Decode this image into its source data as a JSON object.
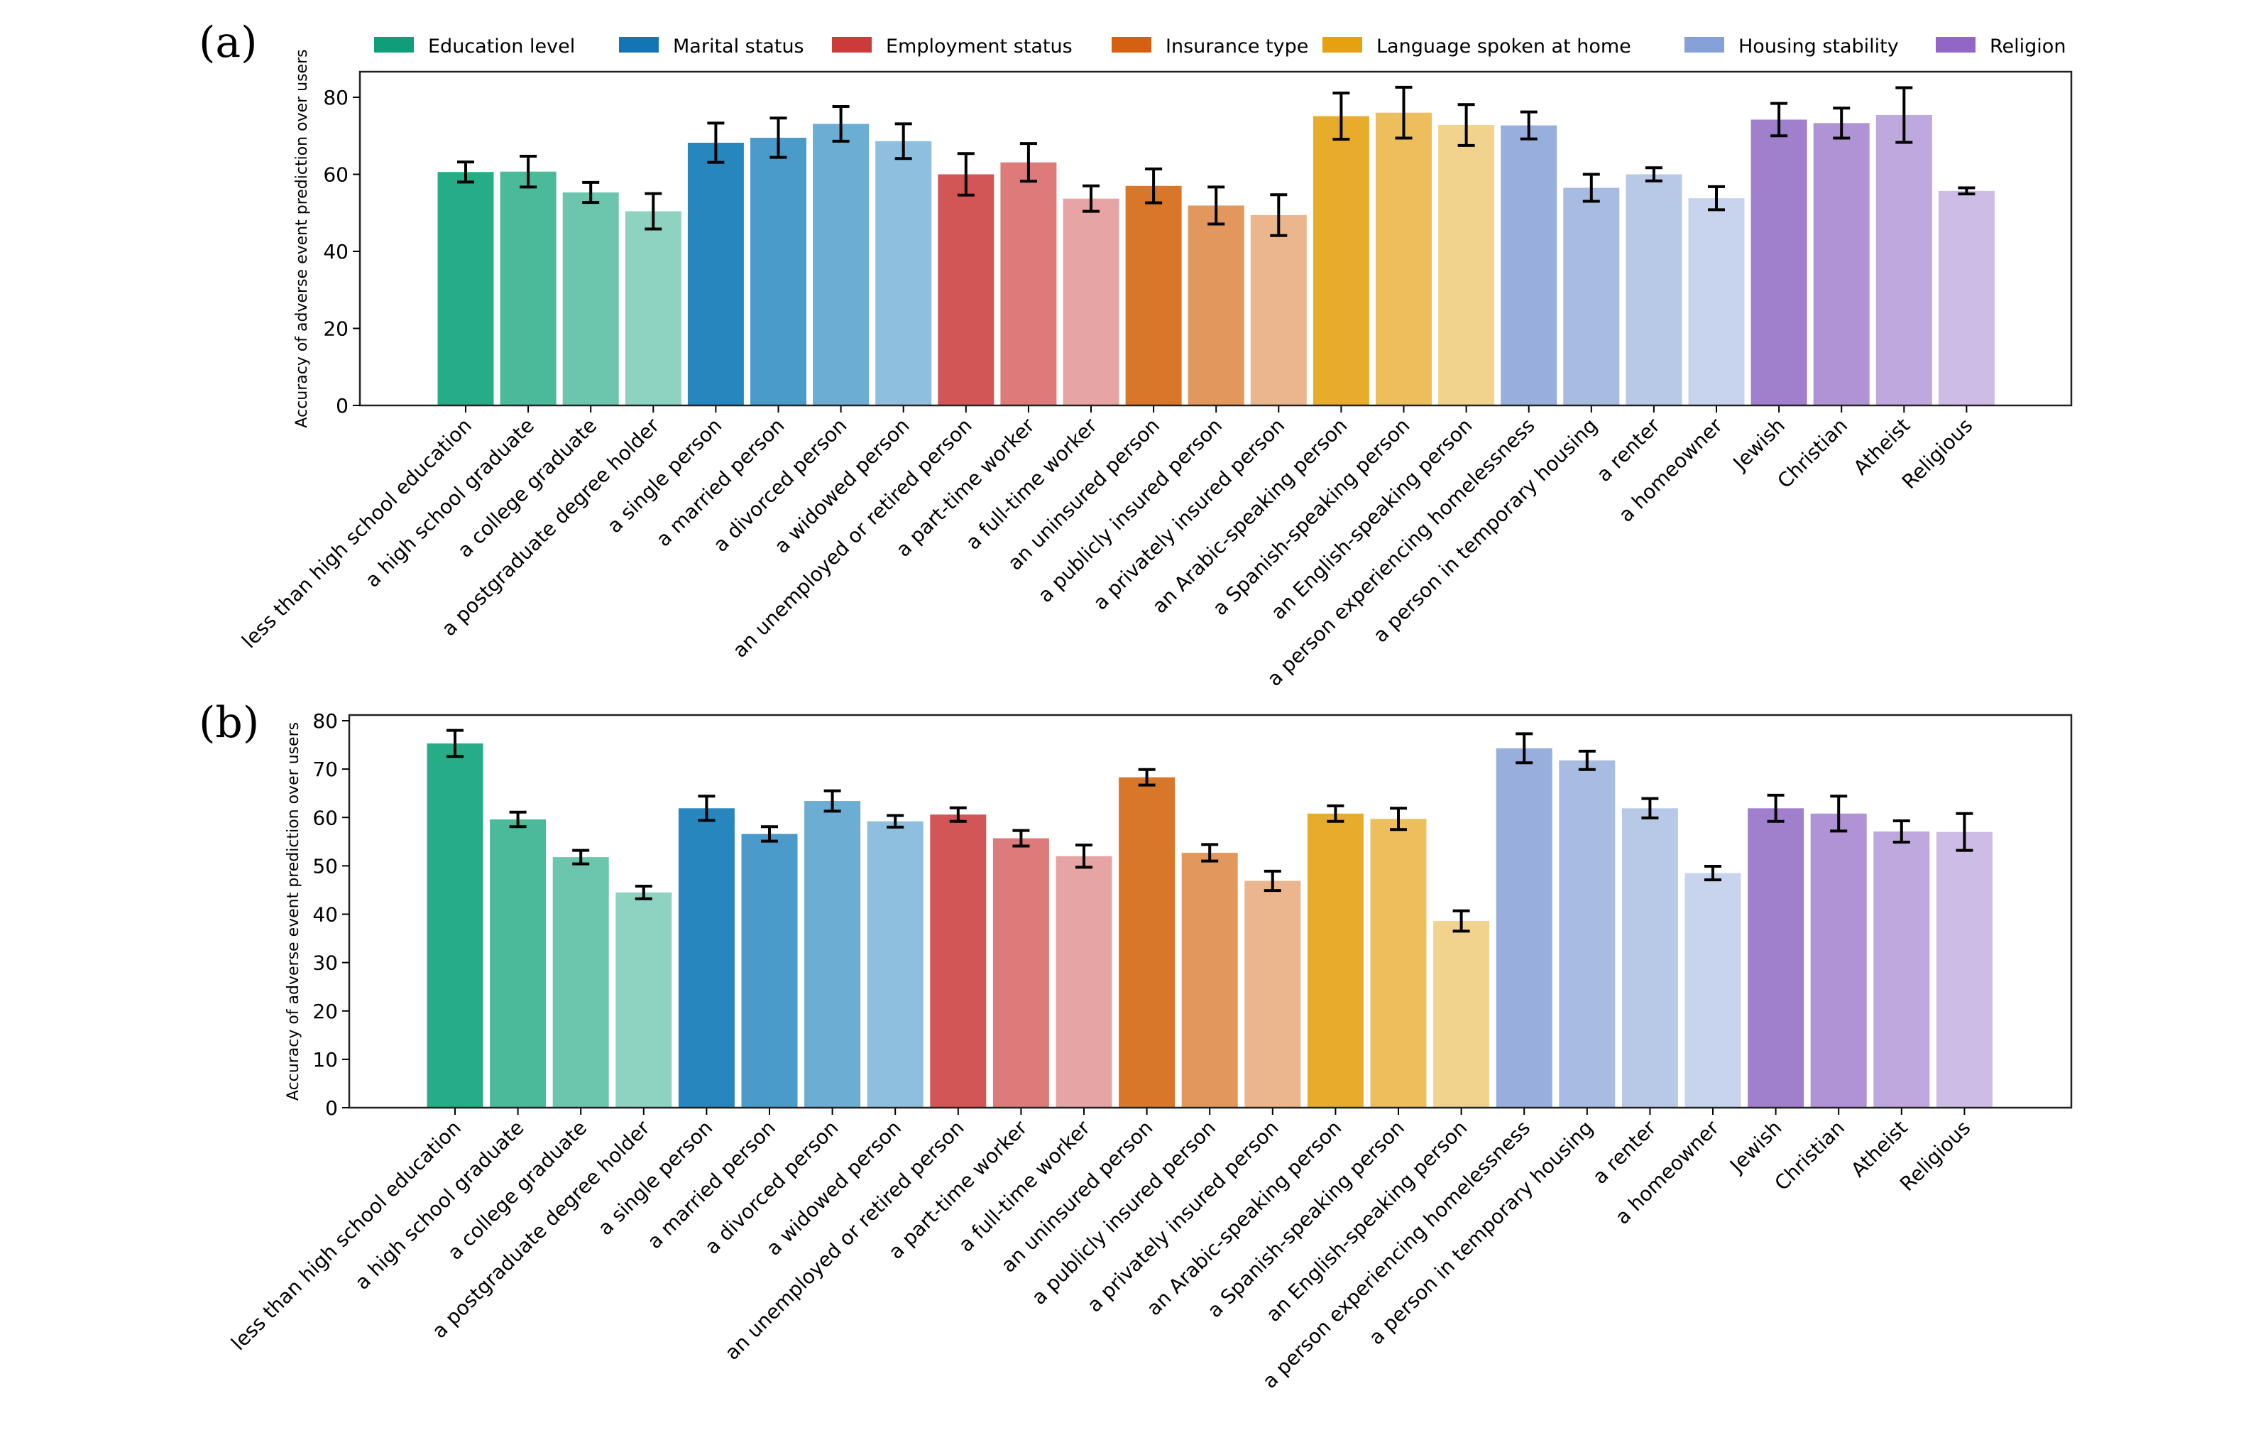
{
  "figure": {
    "legend": [
      {
        "label": "Education level",
        "color": "#109e7a"
      },
      {
        "label": "Marital status",
        "color": "#1475b5"
      },
      {
        "label": "Employment status",
        "color": "#cc3a3a"
      },
      {
        "label": "Insurance type",
        "color": "#d5600f"
      },
      {
        "label": "Language spoken at home",
        "color": "#e5a10f"
      },
      {
        "label": "Housing stability",
        "color": "#87a0d8"
      },
      {
        "label": "Religion",
        "color": "#9266c7"
      }
    ]
  },
  "chart_data": [
    {
      "panel": "(a)",
      "type": "bar",
      "title": "",
      "xlabel": "",
      "ylabel": "Accuracy of adverse event prediction over users",
      "ylim": [
        0,
        86
      ],
      "yticks": [
        0,
        20,
        40,
        60,
        80
      ],
      "grid": false,
      "legend_position": "top",
      "categories": [
        "less than high school education",
        "a high school graduate",
        "a college graduate",
        "a postgraduate degree holder",
        "a single person",
        "a married person",
        "a divorced person",
        "a widowed person",
        "an unemployed or retired person",
        "a part-time worker",
        "a full-time worker",
        "an uninsured person",
        "a publicly insured person",
        "a privately insured person",
        "an Arabic-speaking person",
        "a Spanish-speaking person",
        "an English-speaking person",
        "a person experiencing homelessness",
        "a person in temporary housing",
        "a renter",
        "a homeowner",
        "Jewish",
        "Christian",
        "Atheist",
        "Religious"
      ],
      "groups": [
        "Education level",
        "Education level",
        "Education level",
        "Education level",
        "Marital status",
        "Marital status",
        "Marital status",
        "Marital status",
        "Employment status",
        "Employment status",
        "Employment status",
        "Insurance type",
        "Insurance type",
        "Insurance type",
        "Language spoken at home",
        "Language spoken at home",
        "Language spoken at home",
        "Housing stability",
        "Housing stability",
        "Housing stability",
        "Housing stability",
        "Religion",
        "Religion",
        "Religion",
        "Religion"
      ],
      "colors": [
        "#26ad88",
        "#4bba9b",
        "#6cc6ae",
        "#8ed3c1",
        "#2886bf",
        "#4a9aca",
        "#6badd3",
        "#8ebfde",
        "#d25656",
        "#dd7b7b",
        "#e7a4a4",
        "#d8762a",
        "#e2985c",
        "#ebb68d",
        "#e8ac2d",
        "#edbf5c",
        "#f2d38e",
        "#98afdd",
        "#a8bce2",
        "#b8c9e7",
        "#c8d4ed",
        "#a080cd",
        "#b093d4",
        "#bfa8dd",
        "#cdbce6"
      ],
      "values": [
        60.6,
        60.7,
        55.3,
        50.4,
        68.2,
        69.5,
        73.1,
        68.6,
        60.0,
        63.1,
        53.7,
        57.0,
        51.9,
        49.4,
        75.1,
        76.0,
        72.8,
        72.7,
        56.5,
        60.0,
        53.8,
        74.2,
        73.3,
        75.4,
        55.7
      ],
      "errors": [
        2.6,
        4.0,
        2.6,
        4.6,
        5.1,
        5.1,
        4.5,
        4.5,
        5.4,
        4.9,
        3.3,
        4.4,
        4.8,
        5.3,
        6.0,
        6.6,
        5.3,
        3.5,
        3.5,
        1.7,
        3.0,
        4.2,
        3.9,
        7.1,
        0.8
      ]
    },
    {
      "panel": "(b)",
      "type": "bar",
      "title": "",
      "xlabel": "",
      "ylabel": "Accuracy of adverse event prediction over users",
      "ylim": [
        0,
        82
      ],
      "yticks": [
        0,
        10,
        20,
        30,
        40,
        50,
        60,
        70,
        80
      ],
      "grid": false,
      "categories": [
        "less than high school education",
        "a high school graduate",
        "a college graduate",
        "a postgraduate degree holder",
        "a single person",
        "a married person",
        "a divorced person",
        "a widowed person",
        "an unemployed or retired person",
        "a part-time worker",
        "a full-time worker",
        "an uninsured person",
        "a publicly insured person",
        "a privately insured person",
        "an Arabic-speaking person",
        "a Spanish-speaking person",
        "an English-speaking person",
        "a person experiencing homelessness",
        "a person in temporary housing",
        "a renter",
        "a homeowner",
        "Jewish",
        "Christian",
        "Atheist",
        "Religious"
      ],
      "colors": [
        "#26ad88",
        "#4bba9b",
        "#6cc6ae",
        "#8ed3c1",
        "#2886bf",
        "#4a9aca",
        "#6badd3",
        "#8ebfde",
        "#d25656",
        "#dd7b7b",
        "#e7a4a4",
        "#d8762a",
        "#e2985c",
        "#ebb68d",
        "#e8ac2d",
        "#edbf5c",
        "#f2d38e",
        "#98afdd",
        "#a8bce2",
        "#b8c9e7",
        "#c8d4ed",
        "#a080cd",
        "#b093d4",
        "#bfa8dd",
        "#cdbce6"
      ],
      "values": [
        75.3,
        59.6,
        51.8,
        44.5,
        61.9,
        56.6,
        63.4,
        59.2,
        60.6,
        55.7,
        52.0,
        68.3,
        52.7,
        46.9,
        60.8,
        59.7,
        38.6,
        74.3,
        71.8,
        61.9,
        48.5,
        61.9,
        60.8,
        57.1,
        57.0
      ],
      "errors": [
        2.7,
        1.5,
        1.4,
        1.3,
        2.5,
        1.5,
        2.1,
        1.2,
        1.4,
        1.6,
        2.3,
        1.6,
        1.7,
        2.0,
        1.6,
        2.2,
        2.1,
        3.0,
        1.9,
        2.0,
        1.4,
        2.7,
        3.6,
        2.2,
        3.8
      ]
    }
  ]
}
